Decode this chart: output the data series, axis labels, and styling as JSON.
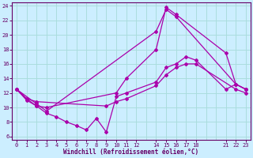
{
  "xlabel": "Windchill (Refroidissement éolien,°C)",
  "bg_color": "#cceeff",
  "line_color": "#aa00aa",
  "grid_color": "#aadddd",
  "xlim": [
    -0.5,
    23.5
  ],
  "ylim": [
    5.5,
    24.5
  ],
  "xticks_grid": [
    0,
    1,
    2,
    3,
    4,
    5,
    6,
    7,
    8,
    9,
    10,
    11,
    12,
    13,
    14,
    15,
    16,
    17,
    18,
    19,
    20,
    21,
    22,
    23
  ],
  "xticks_label": [
    0,
    1,
    2,
    3,
    4,
    5,
    6,
    7,
    8,
    9,
    10,
    11,
    12,
    14,
    15,
    16,
    17,
    18,
    21,
    22,
    23
  ],
  "yticks": [
    6,
    8,
    10,
    12,
    14,
    16,
    18,
    20,
    22,
    24
  ],
  "series": [
    {
      "x": [
        0,
        1,
        2,
        3,
        10,
        11,
        14,
        15,
        16,
        21,
        22,
        23
      ],
      "y": [
        12.5,
        11.0,
        10.2,
        10.0,
        12.0,
        14.0,
        18.0,
        23.8,
        22.8,
        17.5,
        13.2,
        12.5
      ]
    },
    {
      "x": [
        0,
        2,
        3,
        14,
        15,
        16,
        22,
        23
      ],
      "y": [
        12.5,
        10.5,
        9.5,
        20.5,
        23.5,
        22.5,
        13.2,
        12.5
      ]
    },
    {
      "x": [
        0,
        1,
        2,
        3,
        4,
        5,
        6,
        7,
        8,
        9,
        10,
        11,
        14,
        15,
        16,
        17,
        18,
        21,
        22,
        23
      ],
      "y": [
        12.5,
        11.2,
        10.2,
        9.2,
        8.7,
        8.0,
        7.5,
        6.9,
        8.5,
        6.6,
        11.5,
        12.0,
        13.5,
        15.5,
        16.0,
        17.0,
        16.5,
        12.5,
        13.2,
        12.5
      ]
    },
    {
      "x": [
        0,
        1,
        2,
        9,
        10,
        11,
        14,
        15,
        16,
        17,
        18,
        22,
        23
      ],
      "y": [
        12.5,
        11.2,
        10.8,
        10.2,
        10.8,
        11.2,
        13.0,
        14.5,
        15.5,
        16.0,
        16.0,
        12.5,
        12.0
      ]
    }
  ]
}
